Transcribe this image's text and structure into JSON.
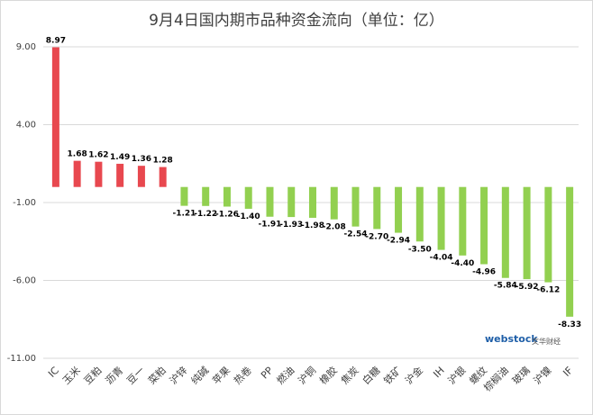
{
  "chart_data": {
    "type": "bar",
    "title": "9月4日国内期市品种资金流向（单位：亿）",
    "categories": [
      "IC",
      "玉米",
      "豆粕",
      "沥青",
      "豆一",
      "菜粕",
      "沪锌",
      "纯碱",
      "苹果",
      "热卷",
      "PP",
      "燃油",
      "沪铜",
      "橡胶",
      "焦炭",
      "白糖",
      "铁矿",
      "沪金",
      "IH",
      "沪银",
      "螺纹",
      "棕榈油",
      "玻璃",
      "沪镍",
      "IF"
    ],
    "values": [
      8.97,
      1.68,
      1.62,
      1.49,
      1.36,
      1.28,
      -1.21,
      -1.22,
      -1.26,
      -1.4,
      -1.91,
      -1.93,
      -1.98,
      -2.08,
      -2.54,
      -2.7,
      -2.94,
      -3.5,
      -4.04,
      -4.4,
      -4.96,
      -5.84,
      -5.92,
      -6.12,
      -8.33
    ],
    "data_labels": [
      "8.97",
      "1.68",
      "1.62",
      "1.49",
      "1.36",
      "1.28",
      "-1.21",
      "-1.22",
      "-1.26",
      "-1.40",
      "-1.91",
      "-1.93",
      "-1.98",
      "-2.08",
      "-2.54",
      "-2.70",
      "-2.94",
      "-3.50",
      "-4.04",
      "-4.40",
      "-4.96",
      "-5.84",
      "-5.92",
      "-6.12",
      "-8.33"
    ],
    "yticks": [
      9.0,
      4.0,
      -1.0,
      -6.0,
      -11.0
    ],
    "ytick_labels": [
      "9.00",
      "4.00",
      "-1.00",
      "-6.00",
      "-11.00"
    ],
    "ylim": [
      -11,
      9
    ],
    "grid": true,
    "colors": {
      "positive": "#e8484f",
      "negative": "#92d050",
      "grid": "#d9d9d9"
    }
  },
  "watermark": {
    "brand": "webstock",
    "sub": "文华财经"
  }
}
